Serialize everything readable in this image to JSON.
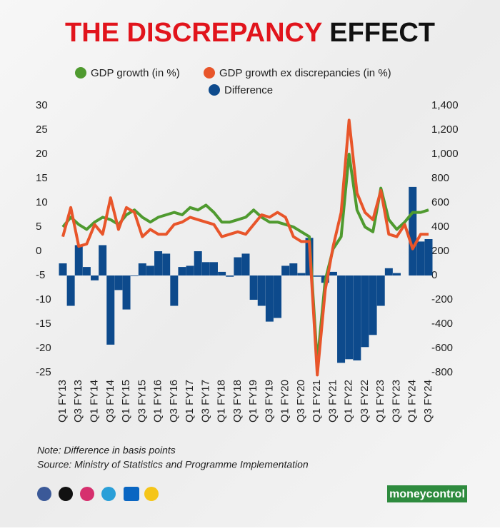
{
  "chart_data": {
    "type": "bar-line",
    "title": [
      "THE DISCREPANCY",
      "EFFECT"
    ],
    "categories": [
      "Q1 FY13",
      null,
      "Q3 FY13",
      null,
      "Q1 FY14",
      null,
      "Q3 FY14",
      null,
      "Q1 FY15",
      null,
      "Q3 FY15",
      null,
      "Q1 FY16",
      null,
      "Q3 FY16",
      null,
      "Q1 FY17",
      null,
      "Q3 FY17",
      null,
      "Q1 FY18",
      null,
      "Q3 FY18",
      null,
      "Q1 FY19",
      null,
      "Q3 FY19",
      null,
      "Q1 FY20",
      null,
      "Q3 FY20",
      null,
      "Q1 FY21",
      null,
      "Q3 FY21",
      null,
      "Q1 FY22",
      null,
      "Q3 FY22",
      null,
      "Q1 FY23",
      null,
      "Q3 FY23",
      null,
      "Q1 FY24",
      null,
      "Q3 FY24"
    ],
    "series": [
      {
        "name": "GDP growth (in %)",
        "color": "#4f9a2f",
        "type": "line",
        "axis": "y",
        "values": [
          5.0,
          7.0,
          5.5,
          4.5,
          6.0,
          7.0,
          6.5,
          5.5,
          7.5,
          8.5,
          7.0,
          6.0,
          7.0,
          7.5,
          8.0,
          7.5,
          9.0,
          8.5,
          9.5,
          8.0,
          6.0,
          6.0,
          6.5,
          7.0,
          8.5,
          7.0,
          6.0,
          6.0,
          5.5,
          5.0,
          4.0,
          3.0,
          -23.0,
          -6.0,
          0.5,
          3.0,
          20.0,
          8.5,
          5.0,
          4.0,
          13.0,
          6.5,
          4.5,
          6.0,
          8.0,
          8.0,
          8.5
        ]
      },
      {
        "name": "GDP growth ex discrepancies (in %)",
        "color": "#e8552a",
        "type": "line",
        "axis": "y",
        "values": [
          3.0,
          9.0,
          1.0,
          1.5,
          5.5,
          3.5,
          11.0,
          4.5,
          9.0,
          8.0,
          3.0,
          4.5,
          3.5,
          3.5,
          5.5,
          6.0,
          7.0,
          6.5,
          6.0,
          5.5,
          3.0,
          3.5,
          4.0,
          3.5,
          5.5,
          7.5,
          7.0,
          8.0,
          7.0,
          3.0,
          2.0,
          2.0,
          -25.5,
          -8.0,
          1.0,
          8.0,
          27.0,
          12.0,
          8.0,
          6.5,
          12.5,
          3.5,
          3.0,
          5.5,
          0.5,
          3.5,
          3.5
        ]
      },
      {
        "name": "Difference",
        "color": "#0d4a8c",
        "type": "bar",
        "axis": "y2",
        "values": [
          100,
          -250,
          250,
          70,
          -40,
          250,
          -570,
          -120,
          -280,
          -5,
          100,
          80,
          200,
          180,
          -250,
          70,
          80,
          200,
          110,
          110,
          30,
          -10,
          150,
          180,
          -200,
          -250,
          -380,
          -350,
          80,
          100,
          20,
          310,
          -10,
          -60,
          30,
          -720,
          -690,
          -700,
          -590,
          -490,
          -250,
          60,
          20,
          0,
          730,
          280,
          300
        ]
      }
    ],
    "ylim": [
      -25,
      30
    ],
    "yticks": [
      30,
      25,
      20,
      15,
      10,
      5,
      0,
      -5,
      -10,
      -15,
      -20,
      -25
    ],
    "y2lim": [
      -800,
      1400
    ],
    "y2ticks": [
      {
        "value": 1400,
        "label": "1,400"
      },
      {
        "value": 1200,
        "label": "1,200"
      },
      {
        "value": 1000,
        "label": "1,000"
      },
      800,
      600,
      400,
      200,
      0,
      -200,
      -400,
      -600,
      -800
    ],
    "notes": [
      "Note: Difference in basis points",
      "Source: Ministry of Statistics and Programme Implementation"
    ],
    "brand": "moneycontrol"
  }
}
